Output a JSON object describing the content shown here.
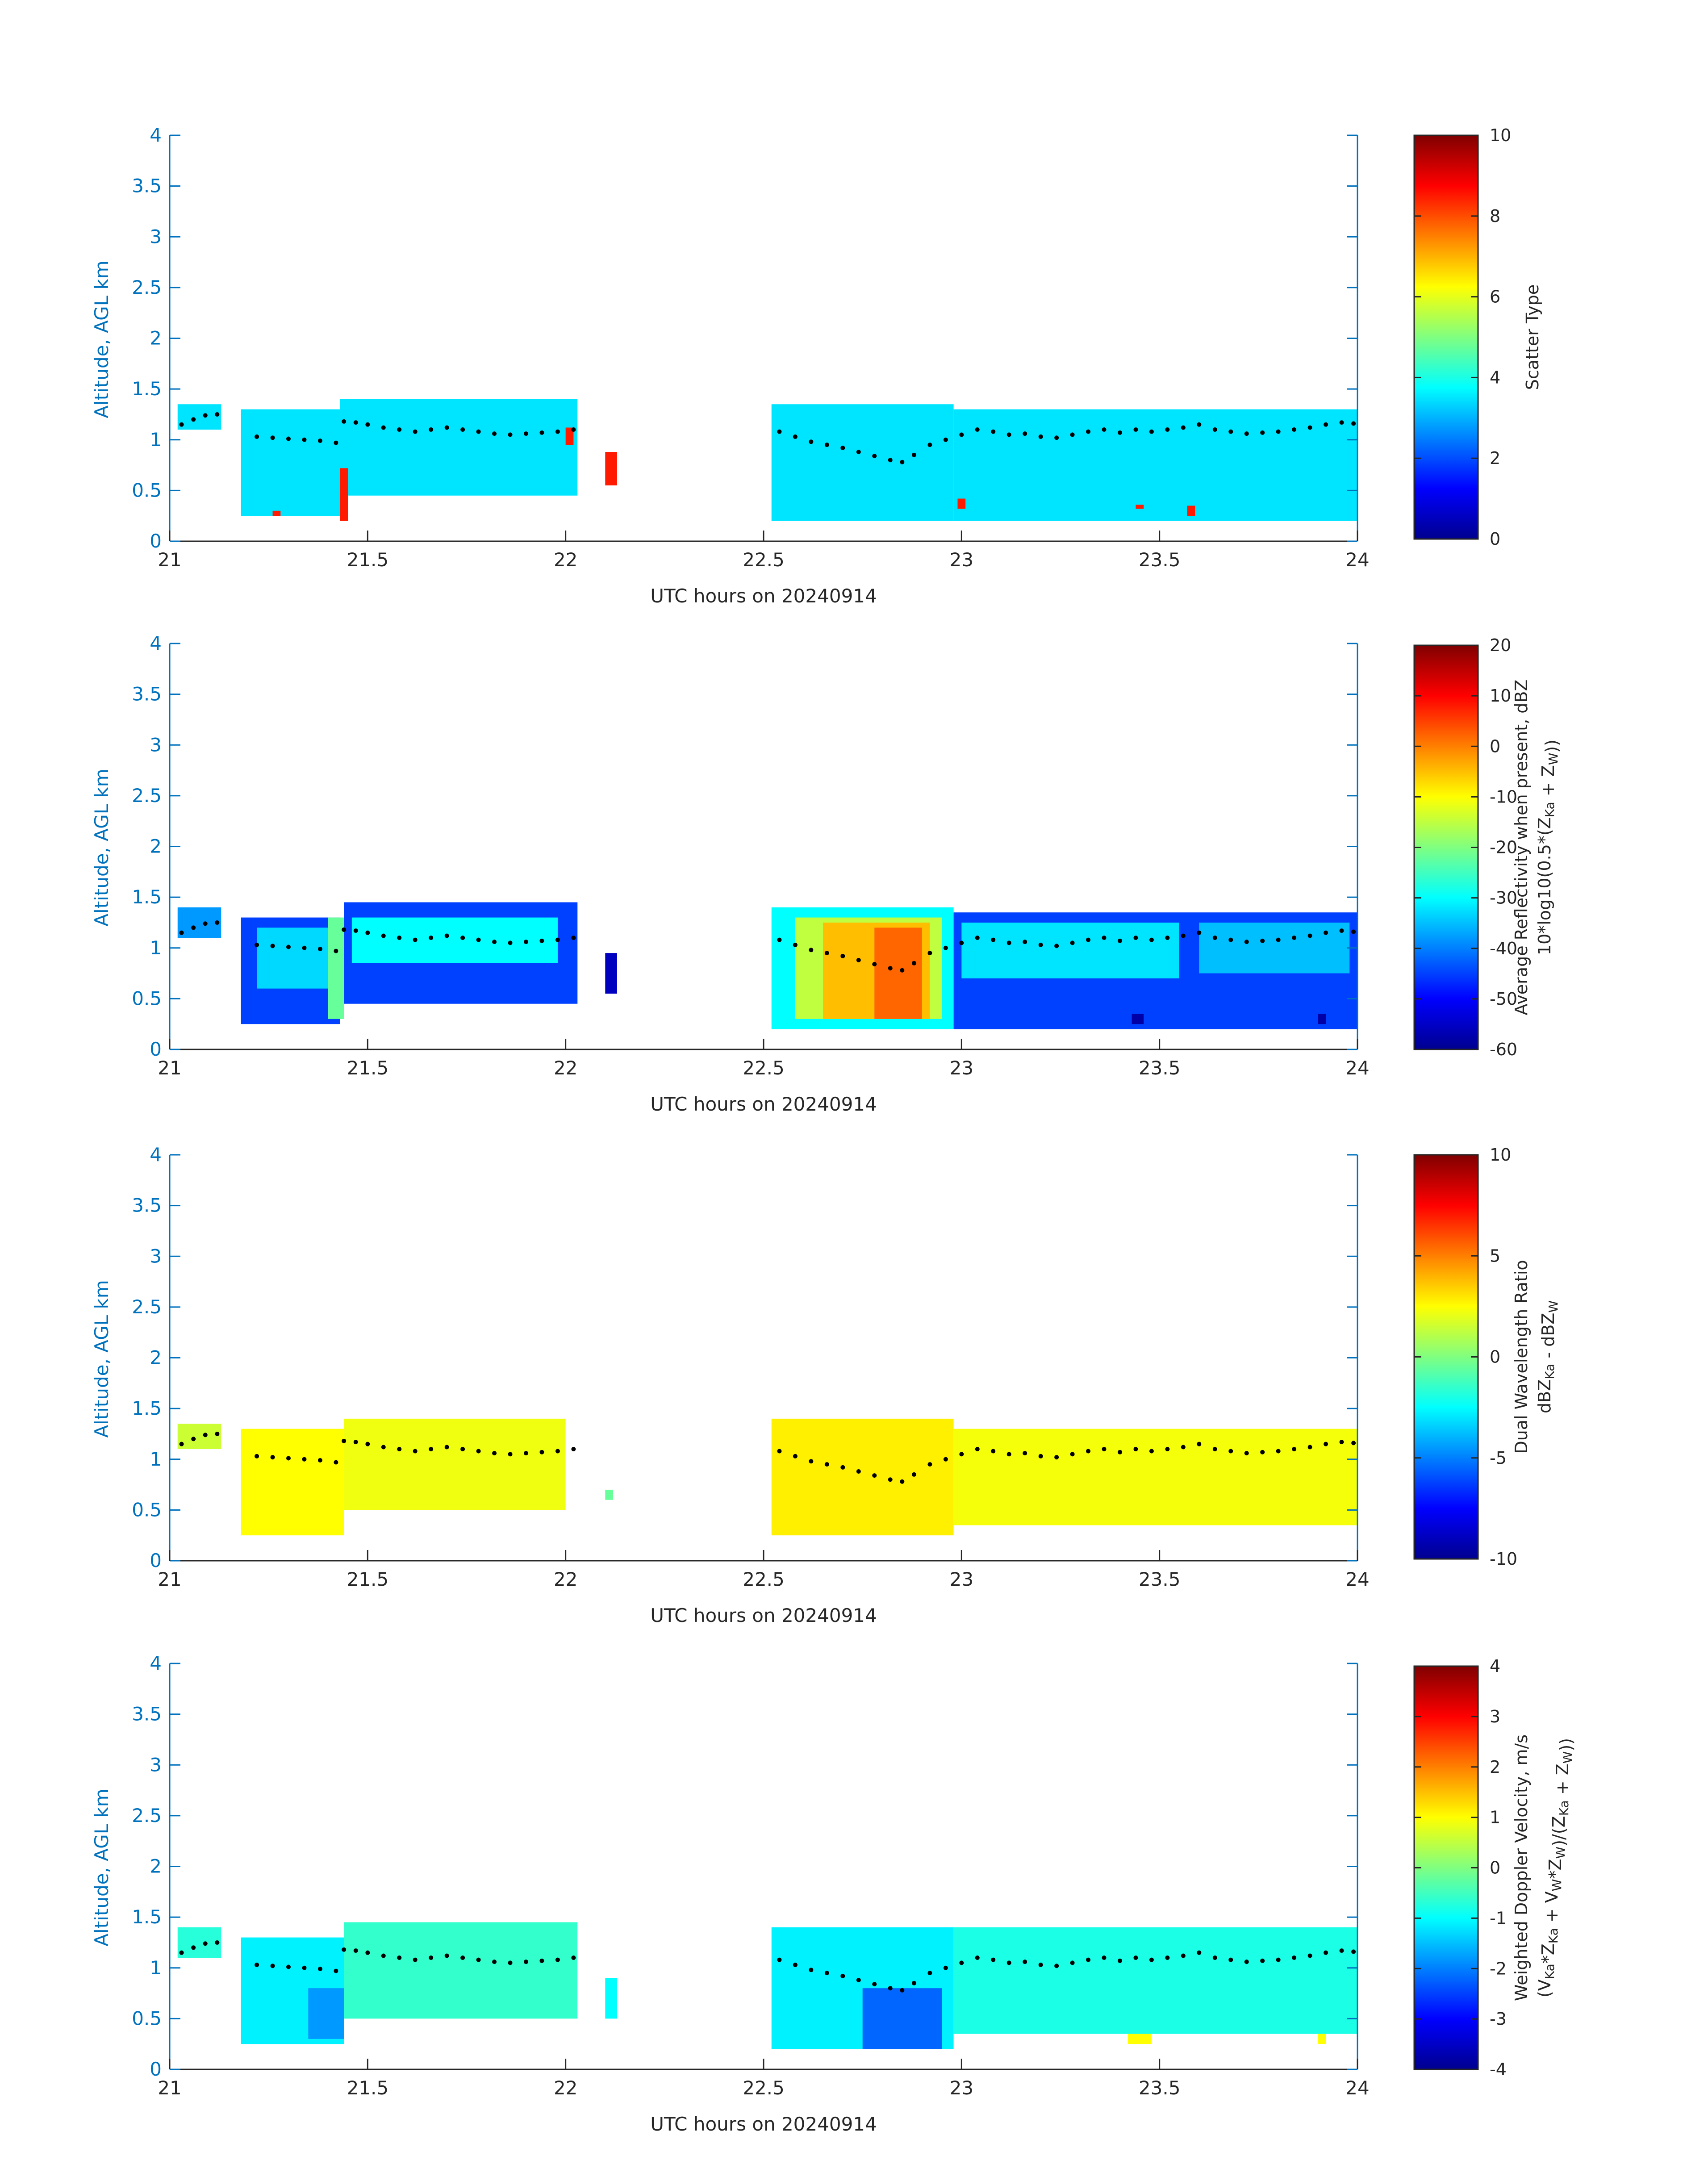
{
  "figure": {
    "panels": [
      {
        "id": "scatter-type",
        "colorbar": {
          "label_lines": [
            {
              "segments": [
                {
                  "t": "Scatter Type"
                }
              ]
            }
          ],
          "ticks": [
            "0",
            "2",
            "4",
            "6",
            "8",
            "10"
          ],
          "range": [
            0,
            10
          ]
        }
      },
      {
        "id": "reflectivity",
        "colorbar": {
          "label_lines": [
            {
              "segments": [
                {
                  "t": "Average Reflectivity when present, dBZ"
                }
              ]
            },
            {
              "segments": [
                {
                  "t": "10*log10(0.5*(Z"
                },
                {
                  "t": "Ka",
                  "sub": true
                },
                {
                  "t": " + Z"
                },
                {
                  "t": "W",
                  "sub": true
                },
                {
                  "t": "))"
                }
              ]
            }
          ],
          "ticks": [
            "-60",
            "-50",
            "-40",
            "-30",
            "-20",
            "-10",
            "0",
            "10",
            "20"
          ],
          "range": [
            -60,
            20
          ]
        }
      },
      {
        "id": "dual-wavelength-ratio",
        "colorbar": {
          "label_lines": [
            {
              "segments": [
                {
                  "t": "Dual Wavelength Ratio"
                }
              ]
            },
            {
              "segments": [
                {
                  "t": "dBZ"
                },
                {
                  "t": "Ka",
                  "sub": true
                },
                {
                  "t": " - dBZ"
                },
                {
                  "t": "W",
                  "sub": true
                }
              ]
            }
          ],
          "ticks": [
            "-10",
            "-5",
            "0",
            "5",
            "10"
          ],
          "range": [
            -10,
            10
          ]
        }
      },
      {
        "id": "doppler-velocity",
        "colorbar": {
          "label_lines": [
            {
              "segments": [
                {
                  "t": "Weighted Doppler Velocity, m/s"
                }
              ]
            },
            {
              "segments": [
                {
                  "t": "(V"
                },
                {
                  "t": "Ka",
                  "sub": true
                },
                {
                  "t": "*Z"
                },
                {
                  "t": "Ka",
                  "sub": true
                },
                {
                  "t": " + V"
                },
                {
                  "t": "W",
                  "sub": true
                },
                {
                  "t": "*Z"
                },
                {
                  "t": "W",
                  "sub": true
                },
                {
                  "t": ")/(Z"
                },
                {
                  "t": "Ka",
                  "sub": true
                },
                {
                  "t": " + Z"
                },
                {
                  "t": "W",
                  "sub": true
                },
                {
                  "t": "))"
                }
              ]
            }
          ],
          "ticks": [
            "-4",
            "-3",
            "-2",
            "-1",
            "0",
            "1",
            "2",
            "3",
            "4"
          ],
          "range": [
            -4,
            4
          ]
        }
      }
    ],
    "colors": {
      "axis": "#0072BD",
      "text": "#262626",
      "scatter_type_3_5": "#2EF3DC",
      "scatter_type_8_5": "#FA4A13",
      "cloud_top_marker": "#000000"
    }
  },
  "chart_data": [
    {
      "type": "heatmap",
      "panel": "scatter-type",
      "xlabel": "UTC hours on 20240914",
      "ylabel": "Altitude, AGL km",
      "xlim": [
        21,
        24
      ],
      "ylim": [
        0,
        4
      ],
      "xticks": [
        "21",
        "21.5",
        "22",
        "22.5",
        "23",
        "23.5",
        "24"
      ],
      "yticks": [
        "0",
        "0.5",
        "1",
        "1.5",
        "2",
        "2.5",
        "3",
        "3.5",
        "4"
      ],
      "colormap": "jet",
      "clim": [
        0,
        10
      ],
      "value_regions": [
        {
          "x": [
            21.02,
            21.13
          ],
          "y": [
            1.1,
            1.35
          ],
          "value": 3.5
        },
        {
          "x": [
            21.18,
            21.43
          ],
          "y": [
            0.25,
            1.3
          ],
          "value": 3.5
        },
        {
          "x": [
            21.43,
            22.03
          ],
          "y": [
            0.45,
            1.4
          ],
          "value": 3.5
        },
        {
          "x": [
            22.52,
            22.98
          ],
          "y": [
            0.2,
            1.35
          ],
          "value": 3.5
        },
        {
          "x": [
            22.98,
            24.0
          ],
          "y": [
            0.2,
            1.3
          ],
          "value": 3.5
        },
        {
          "x": [
            21.43,
            21.45
          ],
          "y": [
            0.2,
            0.72
          ],
          "value": 8.5
        },
        {
          "x": [
            22.1,
            22.13
          ],
          "y": [
            0.55,
            0.88
          ],
          "value": 8.5
        },
        {
          "x": [
            22.0,
            22.02
          ],
          "y": [
            0.95,
            1.12
          ],
          "value": 8.5
        },
        {
          "x": [
            21.26,
            21.28
          ],
          "y": [
            0.25,
            0.3
          ],
          "value": 8.5
        },
        {
          "x": [
            22.99,
            23.01
          ],
          "y": [
            0.32,
            0.42
          ],
          "value": 8.5
        },
        {
          "x": [
            23.44,
            23.46
          ],
          "y": [
            0.32,
            0.36
          ],
          "value": 8.5
        },
        {
          "x": [
            23.57,
            23.59
          ],
          "y": [
            0.25,
            0.35
          ],
          "value": 8.5
        }
      ]
    },
    {
      "type": "heatmap",
      "panel": "reflectivity",
      "xlabel": "UTC hours on 20240914",
      "ylabel": "Altitude, AGL km",
      "xlim": [
        21,
        24
      ],
      "ylim": [
        0,
        4
      ],
      "xticks": [
        "21",
        "21.5",
        "22",
        "22.5",
        "23",
        "23.5",
        "24"
      ],
      "yticks": [
        "0",
        "0.5",
        "1",
        "1.5",
        "2",
        "2.5",
        "3",
        "3.5",
        "4"
      ],
      "colormap": "jet",
      "clim": [
        -60,
        20
      ],
      "value_regions": [
        {
          "x": [
            21.02,
            21.13
          ],
          "y": [
            1.1,
            1.4
          ],
          "value": -38
        },
        {
          "x": [
            21.18,
            21.43
          ],
          "y": [
            0.25,
            1.3
          ],
          "value": -45
        },
        {
          "x": [
            21.22,
            21.4
          ],
          "y": [
            0.6,
            1.2
          ],
          "value": -33
        },
        {
          "x": [
            21.4,
            21.44
          ],
          "y": [
            0.3,
            1.3
          ],
          "value": -22
        },
        {
          "x": [
            21.44,
            22.03
          ],
          "y": [
            0.45,
            1.45
          ],
          "value": -45
        },
        {
          "x": [
            21.46,
            21.98
          ],
          "y": [
            0.85,
            1.3
          ],
          "value": -30
        },
        {
          "x": [
            22.1,
            22.13
          ],
          "y": [
            0.55,
            0.95
          ],
          "value": -55
        },
        {
          "x": [
            22.52,
            22.98
          ],
          "y": [
            0.2,
            1.4
          ],
          "value": -30
        },
        {
          "x": [
            22.58,
            22.95
          ],
          "y": [
            0.3,
            1.3
          ],
          "value": -15
        },
        {
          "x": [
            22.65,
            22.92
          ],
          "y": [
            0.3,
            1.25
          ],
          "value": -5
        },
        {
          "x": [
            22.78,
            22.9
          ],
          "y": [
            0.3,
            1.2
          ],
          "value": 2
        },
        {
          "x": [
            22.98,
            24.0
          ],
          "y": [
            0.2,
            1.35
          ],
          "value": -45
        },
        {
          "x": [
            23.0,
            23.55
          ],
          "y": [
            0.7,
            1.25
          ],
          "value": -32
        },
        {
          "x": [
            23.6,
            23.98
          ],
          "y": [
            0.75,
            1.25
          ],
          "value": -35
        },
        {
          "x": [
            23.43,
            23.46
          ],
          "y": [
            0.25,
            0.35
          ],
          "value": -57
        },
        {
          "x": [
            23.9,
            23.92
          ],
          "y": [
            0.25,
            0.35
          ],
          "value": -57
        }
      ]
    },
    {
      "type": "heatmap",
      "panel": "dual-wavelength-ratio",
      "xlabel": "UTC hours on 20240914",
      "ylabel": "Altitude, AGL km",
      "xlim": [
        21,
        24
      ],
      "ylim": [
        0,
        4
      ],
      "xticks": [
        "21",
        "21.5",
        "22",
        "22.5",
        "23",
        "23.5",
        "24"
      ],
      "yticks": [
        "0",
        "0.5",
        "1",
        "1.5",
        "2",
        "2.5",
        "3",
        "3.5",
        "4"
      ],
      "colormap": "jet",
      "clim": [
        -10,
        10
      ],
      "value_regions": [
        {
          "x": [
            21.02,
            21.13
          ],
          "y": [
            1.1,
            1.35
          ],
          "value": 1.5
        },
        {
          "x": [
            21.18,
            21.44
          ],
          "y": [
            0.25,
            1.3
          ],
          "value": 2.5
        },
        {
          "x": [
            21.44,
            22.0
          ],
          "y": [
            0.5,
            1.4
          ],
          "value": 2.2
        },
        {
          "x": [
            22.1,
            22.12
          ],
          "y": [
            0.6,
            0.7
          ],
          "value": -0.5
        },
        {
          "x": [
            22.52,
            22.98
          ],
          "y": [
            0.25,
            1.4
          ],
          "value": 2.8
        },
        {
          "x": [
            22.98,
            24.0
          ],
          "y": [
            0.35,
            1.3
          ],
          "value": 2.3
        }
      ]
    },
    {
      "type": "heatmap",
      "panel": "doppler-velocity",
      "xlabel": "UTC hours on 20240914",
      "ylabel": "Altitude, AGL km",
      "xlim": [
        21,
        24
      ],
      "ylim": [
        0,
        4
      ],
      "xticks": [
        "21",
        "21.5",
        "22",
        "22.5",
        "23",
        "23.5",
        "24"
      ],
      "yticks": [
        "0",
        "0.5",
        "1",
        "1.5",
        "2",
        "2.5",
        "3",
        "3.5",
        "4"
      ],
      "colormap": "jet",
      "clim": [
        -4,
        4
      ],
      "value_regions": [
        {
          "x": [
            21.02,
            21.13
          ],
          "y": [
            1.1,
            1.4
          ],
          "value": -0.7
        },
        {
          "x": [
            21.18,
            21.44
          ],
          "y": [
            0.25,
            1.3
          ],
          "value": -1.1
        },
        {
          "x": [
            21.35,
            21.44
          ],
          "y": [
            0.3,
            0.8
          ],
          "value": -1.8
        },
        {
          "x": [
            21.44,
            22.03
          ],
          "y": [
            0.5,
            1.45
          ],
          "value": -0.6
        },
        {
          "x": [
            22.1,
            22.13
          ],
          "y": [
            0.5,
            0.9
          ],
          "value": -1.0
        },
        {
          "x": [
            22.52,
            22.98
          ],
          "y": [
            0.2,
            1.4
          ],
          "value": -1.1
        },
        {
          "x": [
            22.75,
            22.95
          ],
          "y": [
            0.2,
            0.8
          ],
          "value": -2.2
        },
        {
          "x": [
            22.98,
            24.0
          ],
          "y": [
            0.35,
            1.4
          ],
          "value": -0.8
        },
        {
          "x": [
            23.42,
            23.48
          ],
          "y": [
            0.25,
            0.35
          ],
          "value": 1.0
        },
        {
          "x": [
            23.9,
            23.92
          ],
          "y": [
            0.25,
            0.35
          ],
          "value": 1.0
        }
      ]
    }
  ],
  "cloud_top_series": {
    "name": "",
    "x": [
      21.03,
      21.06,
      21.09,
      21.12,
      21.22,
      21.26,
      21.3,
      21.34,
      21.38,
      21.42,
      21.44,
      21.47,
      21.5,
      21.54,
      21.58,
      21.62,
      21.66,
      21.7,
      21.74,
      21.78,
      21.82,
      21.86,
      21.9,
      21.94,
      21.98,
      22.02,
      22.54,
      22.58,
      22.62,
      22.66,
      22.7,
      22.74,
      22.78,
      22.82,
      22.85,
      22.88,
      22.92,
      22.96,
      23.0,
      23.04,
      23.08,
      23.12,
      23.16,
      23.2,
      23.24,
      23.28,
      23.32,
      23.36,
      23.4,
      23.44,
      23.48,
      23.52,
      23.56,
      23.6,
      23.64,
      23.68,
      23.72,
      23.76,
      23.8,
      23.84,
      23.88,
      23.92,
      23.96,
      23.99
    ],
    "y": [
      1.15,
      1.2,
      1.24,
      1.25,
      1.03,
      1.02,
      1.01,
      1.0,
      0.99,
      0.97,
      1.18,
      1.17,
      1.15,
      1.12,
      1.1,
      1.08,
      1.1,
      1.12,
      1.1,
      1.08,
      1.06,
      1.05,
      1.06,
      1.07,
      1.08,
      1.1,
      1.08,
      1.03,
      0.98,
      0.95,
      0.92,
      0.88,
      0.84,
      0.8,
      0.78,
      0.85,
      0.95,
      1.0,
      1.05,
      1.1,
      1.08,
      1.05,
      1.06,
      1.03,
      1.02,
      1.05,
      1.08,
      1.1,
      1.07,
      1.1,
      1.08,
      1.1,
      1.12,
      1.15,
      1.1,
      1.08,
      1.06,
      1.07,
      1.08,
      1.1,
      1.12,
      1.15,
      1.17,
      1.16
    ]
  }
}
